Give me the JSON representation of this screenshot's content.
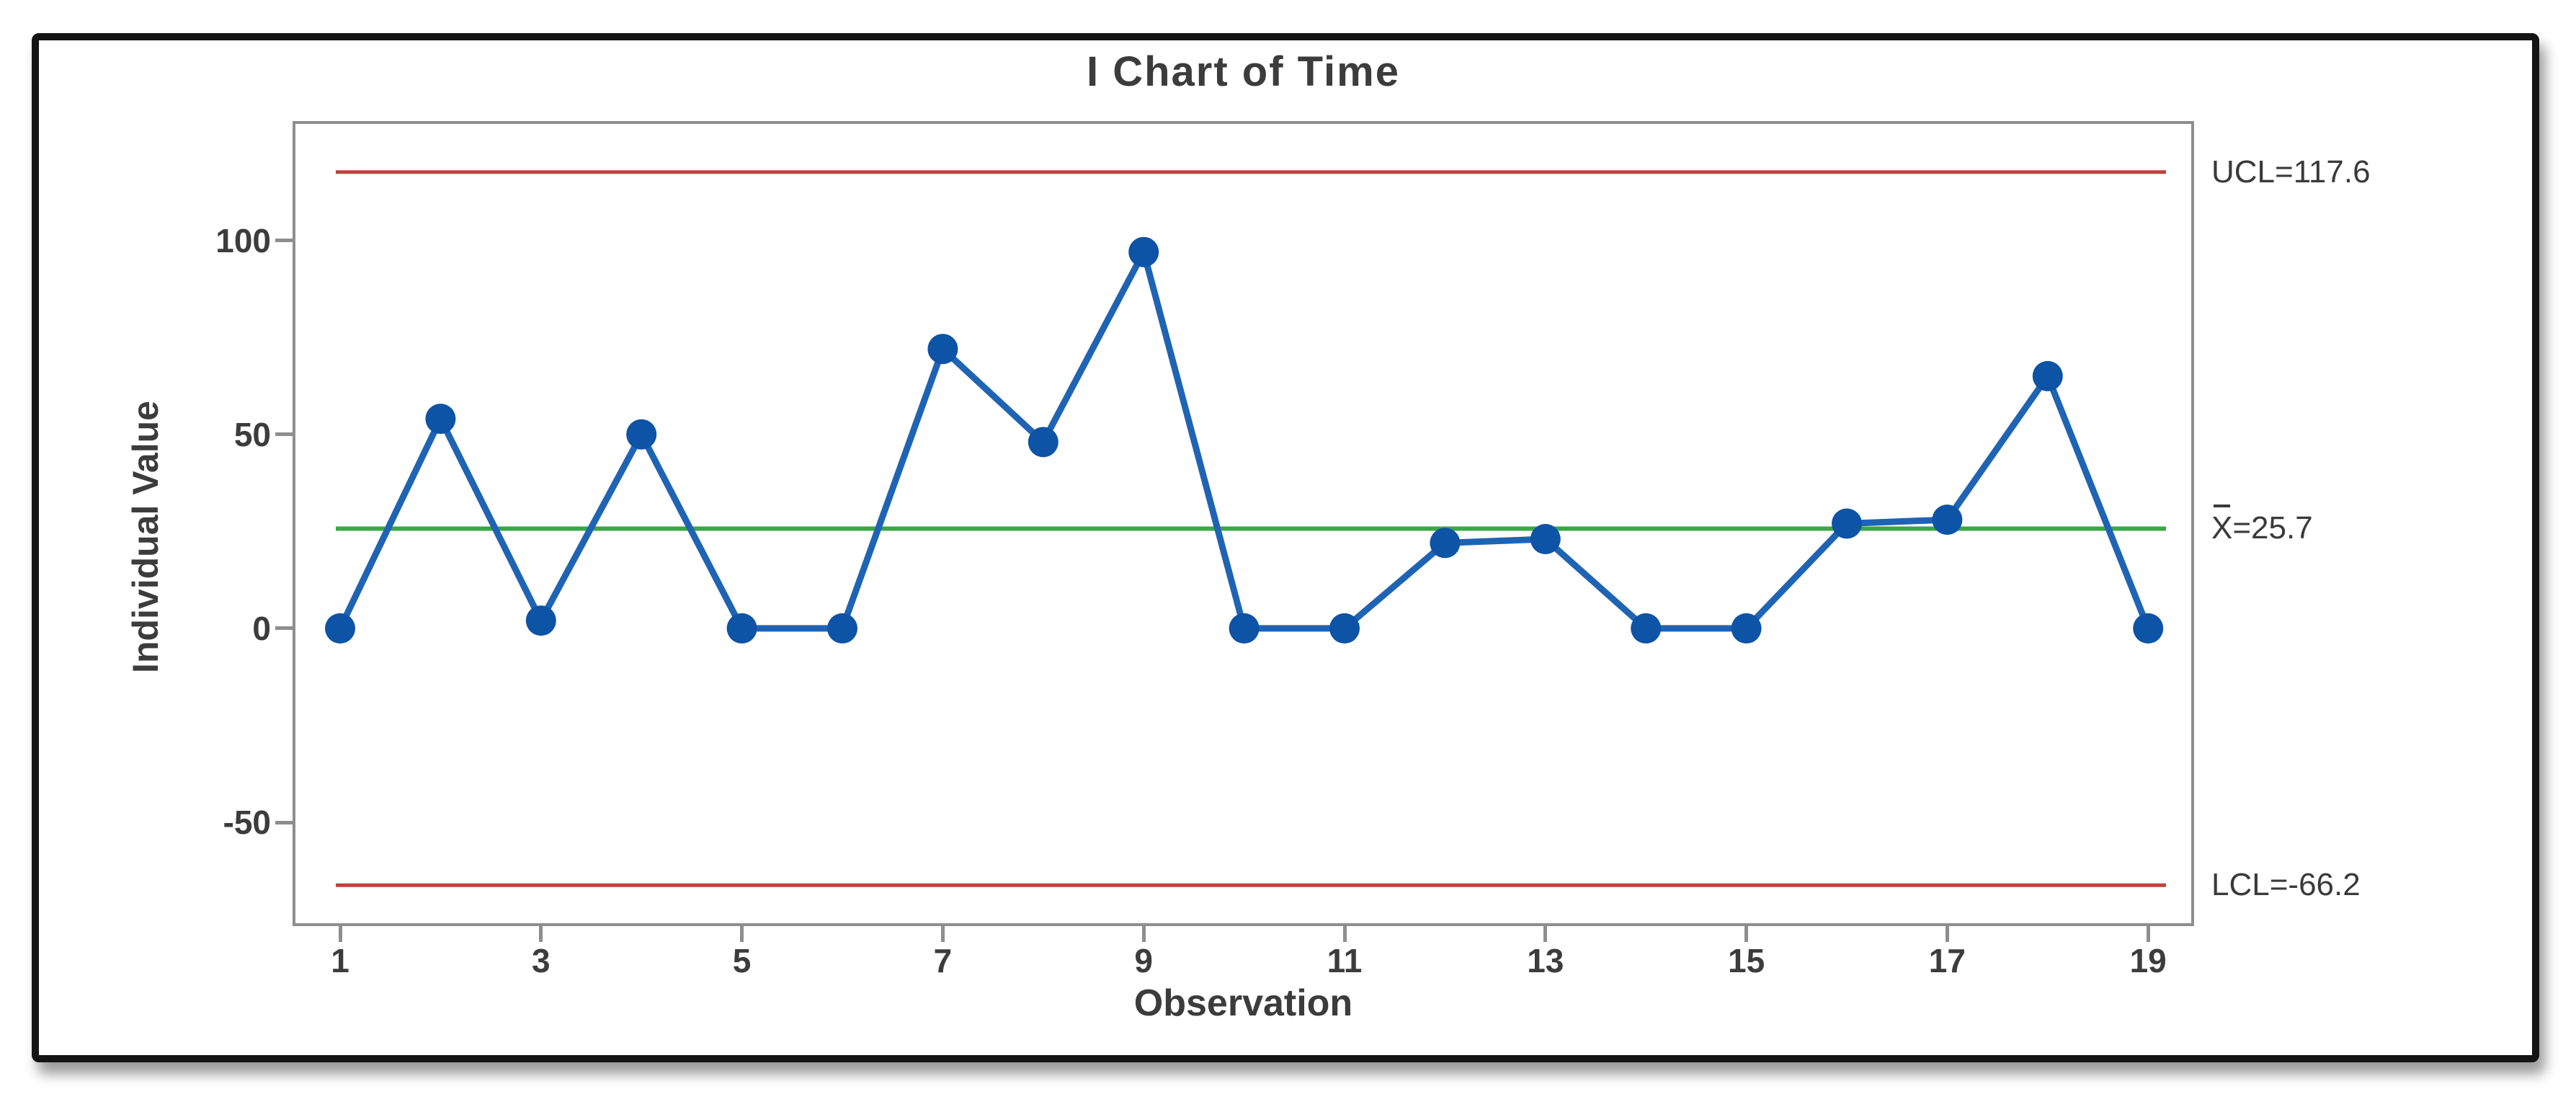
{
  "chart_data": {
    "type": "line",
    "title": "I Chart of Time",
    "xlabel": "Observation",
    "ylabel": "Individual Value",
    "x": [
      1,
      2,
      3,
      4,
      5,
      6,
      7,
      8,
      9,
      10,
      11,
      12,
      13,
      14,
      15,
      16,
      17,
      18,
      19
    ],
    "values": [
      0,
      54,
      2,
      50,
      0,
      0,
      72,
      48,
      97,
      0,
      0,
      22,
      23,
      0,
      0,
      27,
      28,
      65,
      0
    ],
    "center_line": 25.7,
    "ucl": 117.6,
    "lcl": -66.2,
    "x_ticks": [
      1,
      3,
      5,
      7,
      9,
      11,
      13,
      15,
      17,
      19
    ],
    "y_ticks": [
      100,
      50,
      0,
      -50
    ],
    "ylim": [
      -76,
      130
    ],
    "grid": false,
    "legend_position": "none"
  },
  "labels": {
    "ucl": "UCL=117.6",
    "center_symbol": "X",
    "center_rest": "=25.7",
    "lcl": "LCL=-66.2"
  },
  "colors": {
    "marker_blue": "#0d53a6",
    "line_blue": "#1f64b4",
    "center_green": "#3aa648",
    "limit_red": "#bf423d",
    "text": "#3c3c3c",
    "plot_border": "#8e8e8e",
    "frame": "#141414"
  }
}
